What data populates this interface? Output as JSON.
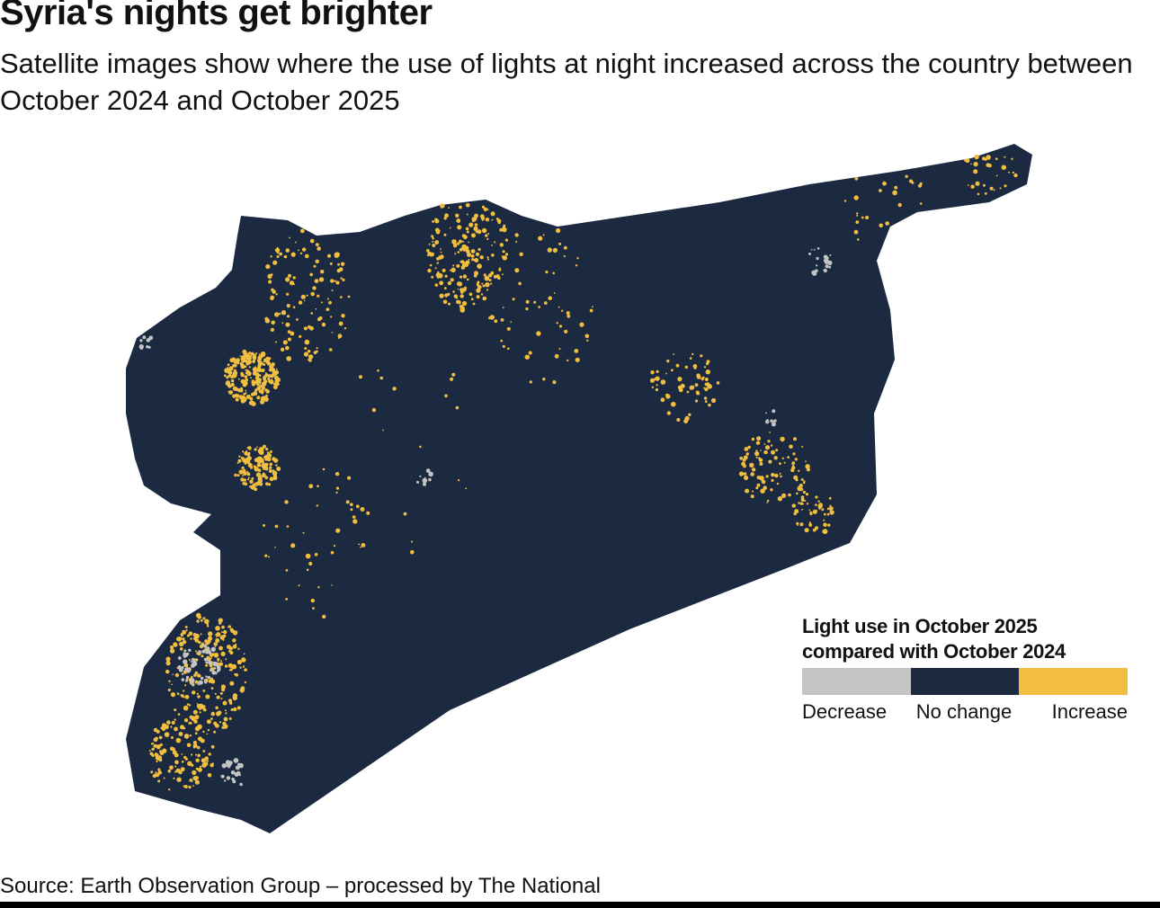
{
  "title": "Syria's nights get brighter",
  "subtitle": "Satellite images show where the use of lights at night increased across the country between October 2024 and October 2025",
  "legend": {
    "title": "Light use in October 2025 compared with October 2024",
    "categories": [
      {
        "label": "Decrease",
        "color": "#c4c4c4"
      },
      {
        "label": "No change",
        "color": "#1b2a41"
      },
      {
        "label": "Increase",
        "color": "#f2be3f"
      }
    ]
  },
  "map": {
    "region": "Syria",
    "base_color": "#1b2a41",
    "increase_color": "#f2be3f",
    "decrease_color": "#c4c4c4"
  },
  "source": "Source: Earth Observation Group – processed by The National"
}
